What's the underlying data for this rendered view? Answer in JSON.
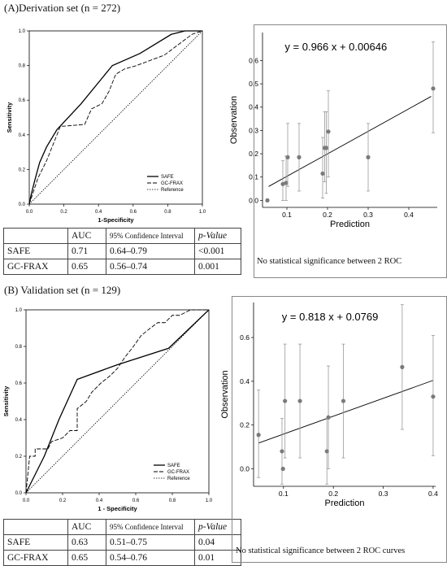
{
  "panels": [
    {
      "title": "(A)Derivation set (n = 272)",
      "roc": {
        "xlabel": "1-Specificity",
        "ylabel": "Sensitivity",
        "ticks": [
          "0.0",
          "0.2",
          "0.4",
          "0.6",
          "0.8",
          "1.0"
        ],
        "legend": [
          "SAFE",
          "GC-FRAX",
          "Reference"
        ]
      },
      "scatter": {
        "equation": "y = 0.966 x + 0.00646",
        "xlabel": "Prediction",
        "ylabel": "Observation",
        "xticks": [
          "0.1",
          "0.2",
          "0.3",
          "0.4"
        ],
        "yticks": [
          "0.0",
          "0.1",
          "0.2",
          "0.3",
          "0.4",
          "0.5",
          "0.6"
        ]
      },
      "table": {
        "headers": [
          "",
          "AUC",
          "95% Confidence Interval",
          "p-Value"
        ],
        "rows": [
          [
            "SAFE",
            "0.71",
            "0.64–0.79",
            "<0.001"
          ],
          [
            "GC-FRAX",
            "0.65",
            "0.56–0.74",
            "0.001"
          ]
        ]
      },
      "note": "No statistical significance between 2 ROC"
    },
    {
      "title": "(B) Validation set (n = 129)",
      "roc": {
        "xlabel": "1 - Specificity",
        "ylabel": "Sensitivity",
        "ticks": [
          "0.0",
          "0.2",
          "0.4",
          "0.6",
          "0.8",
          "1.0"
        ],
        "legend": [
          "SAFE",
          "GC-FRAX",
          "Reference"
        ]
      },
      "scatter": {
        "equation": "y = 0.818 x + 0.0769",
        "xlabel": "Prediction",
        "ylabel": "Observation",
        "xticks": [
          "0.1",
          "0.2",
          "0.3",
          "0.4"
        ],
        "yticks": [
          "0.0",
          "0.2",
          "0.4",
          "0.6"
        ]
      },
      "table": {
        "headers": [
          "",
          "AUC",
          "95% Confidence Interval",
          "p-Value"
        ],
        "rows": [
          [
            "SAFE",
            "0.63",
            "0.51–0.75",
            "0.04"
          ],
          [
            "GC-FRAX",
            "0.65",
            "0.54–0.76",
            "0.01"
          ]
        ]
      },
      "note": "No statistical significance between 2 ROC curves"
    }
  ],
  "chart_data": [
    {
      "type": "line",
      "xlabel": "1-Specificity",
      "ylabel": "Sensitivity",
      "xlim": [
        0,
        1
      ],
      "ylim": [
        0,
        1
      ],
      "series": [
        {
          "name": "SAFE",
          "x": [
            0,
            0.01,
            0.03,
            0.06,
            0.1,
            0.16,
            0.3,
            0.48,
            0.64,
            0.82,
            0.9,
            1
          ],
          "y": [
            0,
            0.05,
            0.13,
            0.24,
            0.33,
            0.43,
            0.58,
            0.8,
            0.87,
            0.98,
            1,
            1
          ]
        },
        {
          "name": "GC-FRAX",
          "x": [
            0,
            0.02,
            0.05,
            0.1,
            0.14,
            0.18,
            0.2,
            0.32,
            0.36,
            0.42,
            0.46,
            0.5,
            0.55,
            0.62,
            0.7,
            0.78,
            0.86,
            0.94,
            1
          ],
          "y": [
            0,
            0.06,
            0.15,
            0.25,
            0.35,
            0.45,
            0.45,
            0.46,
            0.55,
            0.58,
            0.65,
            0.75,
            0.78,
            0.8,
            0.83,
            0.86,
            0.92,
            0.98,
            1
          ]
        },
        {
          "name": "Reference",
          "x": [
            0,
            1
          ],
          "y": [
            0,
            1
          ]
        }
      ]
    },
    {
      "type": "scatter",
      "xlabel": "Prediction",
      "ylabel": "Observation",
      "xlim": [
        0.04,
        0.47
      ],
      "ylim": [
        -0.03,
        0.72
      ],
      "points": [
        {
          "x": 0.052,
          "y": 0.0,
          "lo": 0.0,
          "hi": 0.0
        },
        {
          "x": 0.09,
          "y": 0.07,
          "lo": 0.0,
          "hi": 0.17
        },
        {
          "x": 0.098,
          "y": 0.075,
          "lo": 0.0,
          "hi": 0.19
        },
        {
          "x": 0.102,
          "y": 0.185,
          "lo": 0.06,
          "hi": 0.33
        },
        {
          "x": 0.13,
          "y": 0.185,
          "lo": 0.04,
          "hi": 0.33
        },
        {
          "x": 0.188,
          "y": 0.115,
          "lo": 0.01,
          "hi": 0.27
        },
        {
          "x": 0.193,
          "y": 0.225,
          "lo": 0.08,
          "hi": 0.38
        },
        {
          "x": 0.197,
          "y": 0.225,
          "lo": 0.03,
          "hi": 0.38
        },
        {
          "x": 0.202,
          "y": 0.295,
          "lo": 0.1,
          "hi": 0.47
        },
        {
          "x": 0.3,
          "y": 0.185,
          "lo": 0.04,
          "hi": 0.33
        },
        {
          "x": 0.46,
          "y": 0.48,
          "lo": 0.29,
          "hi": 0.68
        }
      ],
      "fit": {
        "slope": 0.966,
        "intercept": 0.00646,
        "x": [
          0.055,
          0.455
        ]
      }
    },
    {
      "type": "line",
      "xlabel": "1 - Specificity",
      "ylabel": "Sensitivity",
      "xlim": [
        0,
        1
      ],
      "ylim": [
        0,
        1
      ],
      "series": [
        {
          "name": "SAFE",
          "x": [
            0,
            0.02,
            0.06,
            0.1,
            0.18,
            0.28,
            0.5,
            0.78,
            1
          ],
          "y": [
            0,
            0.04,
            0.12,
            0.2,
            0.4,
            0.62,
            0.7,
            0.79,
            1
          ]
        },
        {
          "name": "GC-FRAX",
          "x": [
            0,
            0.01,
            0.02,
            0.05,
            0.05,
            0.12,
            0.14,
            0.2,
            0.24,
            0.28,
            0.28,
            0.33,
            0.36,
            0.41,
            0.46,
            0.5,
            0.54,
            0.58,
            0.63,
            0.68,
            0.72,
            0.76,
            0.8,
            0.84,
            0.88,
            0.9,
            0.94,
            1
          ],
          "y": [
            0,
            0.1,
            0.2,
            0.2,
            0.24,
            0.24,
            0.28,
            0.3,
            0.34,
            0.34,
            0.46,
            0.5,
            0.55,
            0.6,
            0.64,
            0.68,
            0.74,
            0.79,
            0.86,
            0.9,
            0.93,
            0.93,
            0.97,
            0.97,
            0.99,
            1,
            1,
            1
          ]
        },
        {
          "name": "Reference",
          "x": [
            0,
            1
          ],
          "y": [
            0,
            1
          ]
        }
      ]
    },
    {
      "type": "scatter",
      "xlabel": "Prediction",
      "ylabel": "Observation",
      "xlim": [
        0.04,
        0.405
      ],
      "ylim": [
        -0.08,
        0.76
      ],
      "points": [
        {
          "x": 0.05,
          "y": 0.155,
          "lo": -0.04,
          "hi": 0.36
        },
        {
          "x": 0.097,
          "y": 0.08,
          "lo": -0.07,
          "hi": 0.23
        },
        {
          "x": 0.099,
          "y": 0.0,
          "lo": 0.0,
          "hi": 0.0
        },
        {
          "x": 0.103,
          "y": 0.31,
          "lo": 0.05,
          "hi": 0.57
        },
        {
          "x": 0.133,
          "y": 0.31,
          "lo": 0.05,
          "hi": 0.57
        },
        {
          "x": 0.187,
          "y": 0.08,
          "lo": -0.07,
          "hi": 0.23
        },
        {
          "x": 0.19,
          "y": 0.235,
          "lo": 0.0,
          "hi": 0.47
        },
        {
          "x": 0.22,
          "y": 0.31,
          "lo": 0.05,
          "hi": 0.57
        },
        {
          "x": 0.338,
          "y": 0.465,
          "lo": 0.18,
          "hi": 0.75
        },
        {
          "x": 0.4,
          "y": 0.33,
          "lo": 0.06,
          "hi": 0.61
        }
      ],
      "fit": {
        "slope": 0.818,
        "intercept": 0.0769,
        "x": [
          0.05,
          0.4
        ]
      }
    }
  ]
}
